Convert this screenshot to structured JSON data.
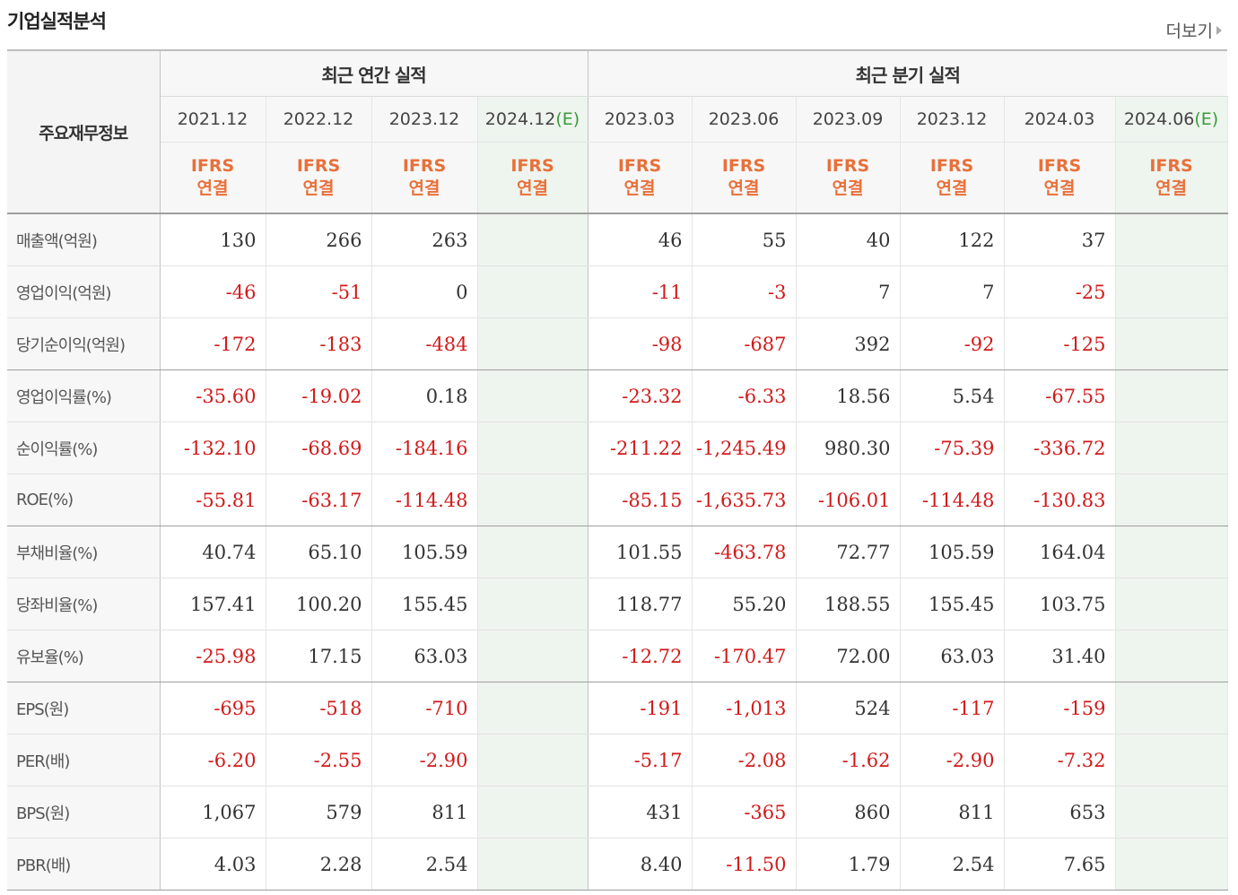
{
  "header": {
    "title": "기업실적분석",
    "more_label": "더보기"
  },
  "table": {
    "label_header": "주요재무정보",
    "annual_group": "최근 연간 실적",
    "quarter_group": "최근 분기 실적",
    "estimate_mark": "(E)",
    "ifrs_line1": "IFRS",
    "ifrs_line2": "연결",
    "annual_periods": [
      "2021.12",
      "2022.12",
      "2023.12",
      "2024.12"
    ],
    "quarter_periods": [
      "2023.03",
      "2023.06",
      "2023.09",
      "2023.12",
      "2024.03",
      "2024.06"
    ],
    "rows": [
      {
        "label": "매출액(억원)",
        "annual": [
          "130",
          "266",
          "263",
          ""
        ],
        "quarter": [
          "46",
          "55",
          "40",
          "122",
          "37",
          ""
        ]
      },
      {
        "label": "영업이익(억원)",
        "annual": [
          "-46",
          "-51",
          "0",
          ""
        ],
        "quarter": [
          "-11",
          "-3",
          "7",
          "7",
          "-25",
          ""
        ]
      },
      {
        "label": "당기순이익(억원)",
        "annual": [
          "-172",
          "-183",
          "-484",
          ""
        ],
        "quarter": [
          "-98",
          "-687",
          "392",
          "-92",
          "-125",
          ""
        ]
      },
      {
        "label": "영업이익률(%)",
        "annual": [
          "-35.60",
          "-19.02",
          "0.18",
          ""
        ],
        "quarter": [
          "-23.32",
          "-6.33",
          "18.56",
          "5.54",
          "-67.55",
          ""
        ]
      },
      {
        "label": "순이익률(%)",
        "annual": [
          "-132.10",
          "-68.69",
          "-184.16",
          ""
        ],
        "quarter": [
          "-211.22",
          "-1,245.49",
          "980.30",
          "-75.39",
          "-336.72",
          ""
        ]
      },
      {
        "label": "ROE(%)",
        "annual": [
          "-55.81",
          "-63.17",
          "-114.48",
          ""
        ],
        "quarter": [
          "-85.15",
          "-1,635.73",
          "-106.01",
          "-114.48",
          "-130.83",
          ""
        ]
      },
      {
        "label": "부채비율(%)",
        "annual": [
          "40.74",
          "65.10",
          "105.59",
          ""
        ],
        "quarter": [
          "101.55",
          "-463.78",
          "72.77",
          "105.59",
          "164.04",
          ""
        ]
      },
      {
        "label": "당좌비율(%)",
        "annual": [
          "157.41",
          "100.20",
          "155.45",
          ""
        ],
        "quarter": [
          "118.77",
          "55.20",
          "188.55",
          "155.45",
          "103.75",
          ""
        ]
      },
      {
        "label": "유보율(%)",
        "annual": [
          "-25.98",
          "17.15",
          "63.03",
          ""
        ],
        "quarter": [
          "-12.72",
          "-170.47",
          "72.00",
          "63.03",
          "31.40",
          ""
        ]
      },
      {
        "label": "EPS(원)",
        "annual": [
          "-695",
          "-518",
          "-710",
          ""
        ],
        "quarter": [
          "-191",
          "-1,013",
          "524",
          "-117",
          "-159",
          ""
        ]
      },
      {
        "label": "PER(배)",
        "annual": [
          "-6.20",
          "-2.55",
          "-2.90",
          ""
        ],
        "quarter": [
          "-5.17",
          "-2.08",
          "-1.62",
          "-2.90",
          "-7.32",
          ""
        ]
      },
      {
        "label": "BPS(원)",
        "annual": [
          "1,067",
          "579",
          "811",
          ""
        ],
        "quarter": [
          "431",
          "-365",
          "860",
          "811",
          "653",
          ""
        ]
      },
      {
        "label": "PBR(배)",
        "annual": [
          "4.03",
          "2.28",
          "2.54",
          ""
        ],
        "quarter": [
          "8.40",
          "-11.50",
          "1.79",
          "2.54",
          "7.65",
          ""
        ]
      }
    ]
  }
}
